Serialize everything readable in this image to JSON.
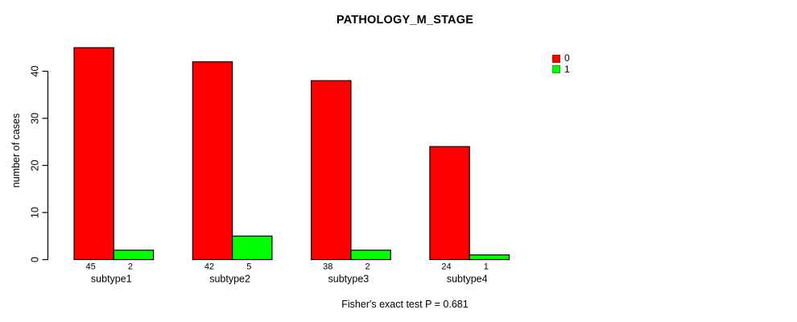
{
  "chart_data": {
    "type": "bar",
    "title": "PATHOLOGY_M_STAGE",
    "xlabel": "",
    "ylabel": "number of cases",
    "categories": [
      "subtype1",
      "subtype2",
      "subtype3",
      "subtype4"
    ],
    "series": [
      {
        "name": "0",
        "color": "#FF0000",
        "values": [
          45,
          42,
          38,
          24
        ]
      },
      {
        "name": "1",
        "color": "#00FF00",
        "values": [
          2,
          5,
          2,
          1
        ]
      }
    ],
    "bar_value_labels": true,
    "ylim": [
      0,
      45
    ],
    "yticks": [
      0,
      10,
      20,
      30,
      40
    ],
    "grid": false,
    "bar_border_color": "#000000",
    "axis_color": "#000000",
    "legend": {
      "position": "top-right",
      "entries": [
        {
          "label": "0",
          "color": "#FF0000"
        },
        {
          "label": "1",
          "color": "#00FF00"
        }
      ]
    },
    "annotation": "Fisher's exact test P = 0.681"
  }
}
